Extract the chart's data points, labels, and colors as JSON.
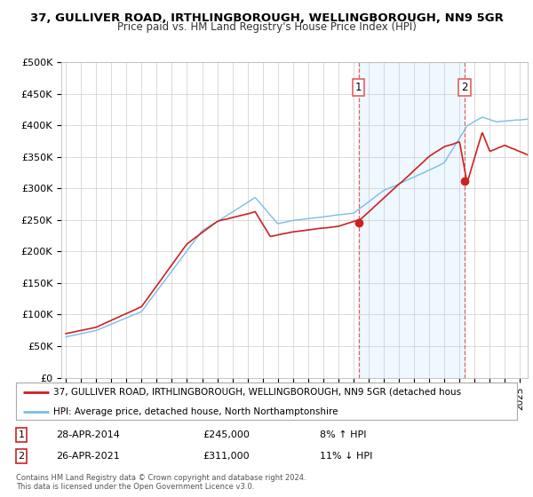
{
  "title_line1": "37, GULLIVER ROAD, IRTHLINGBOROUGH, WELLINGBOROUGH, NN9 5GR",
  "title_line2": "Price paid vs. HM Land Registry's House Price Index (HPI)",
  "ylabel_ticks": [
    "£0",
    "£50K",
    "£100K",
    "£150K",
    "£200K",
    "£250K",
    "£300K",
    "£350K",
    "£400K",
    "£450K",
    "£500K"
  ],
  "ytick_values": [
    0,
    50000,
    100000,
    150000,
    200000,
    250000,
    300000,
    350000,
    400000,
    450000,
    500000
  ],
  "ylim": [
    0,
    500000
  ],
  "hpi_color": "#7abde8",
  "price_color": "#cc2222",
  "vline_color": "#e06060",
  "grid_color": "#cccccc",
  "highlight_color": "#ddeeff",
  "background_color": "#ffffff",
  "legend_line1": "37, GULLIVER ROAD, IRTHLINGBOROUGH, WELLINGBOROUGH, NN9 5GR (detached hous",
  "legend_line2": "HPI: Average price, detached house, North Northamptonshire",
  "sale1_date": "28-APR-2014",
  "sale1_price": "£245,000",
  "sale1_hpi": "8% ↑ HPI",
  "sale1_year": 2014.33,
  "sale1_value": 245000,
  "sale2_date": "26-APR-2021",
  "sale2_price": "£311,000",
  "sale2_hpi": "11% ↓ HPI",
  "sale2_year": 2021.33,
  "sale2_value": 311000,
  "footnote": "Contains HM Land Registry data © Crown copyright and database right 2024.\nThis data is licensed under the Open Government Licence v3.0."
}
